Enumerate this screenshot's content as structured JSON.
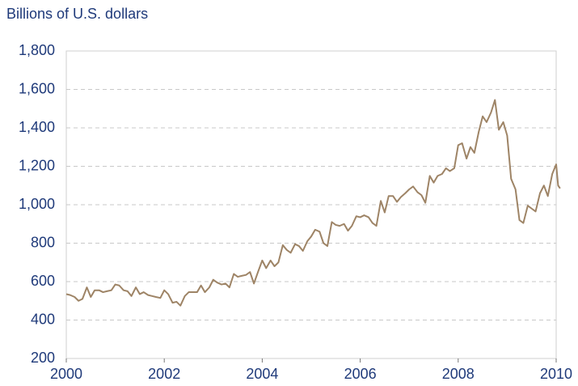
{
  "chart_data": {
    "type": "line",
    "title": "Billions of U.S. dollars",
    "x": [
      2000,
      2000.08,
      2000.17,
      2000.25,
      2000.33,
      2000.42,
      2000.5,
      2000.58,
      2000.67,
      2000.75,
      2000.83,
      2000.92,
      2001,
      2001.08,
      2001.17,
      2001.25,
      2001.33,
      2001.42,
      2001.5,
      2001.58,
      2001.67,
      2001.75,
      2001.83,
      2001.92,
      2002,
      2002.08,
      2002.17,
      2002.25,
      2002.33,
      2002.42,
      2002.5,
      2002.58,
      2002.67,
      2002.75,
      2002.83,
      2002.92,
      2003,
      2003.08,
      2003.17,
      2003.25,
      2003.33,
      2003.42,
      2003.5,
      2003.58,
      2003.67,
      2003.75,
      2003.83,
      2003.92,
      2004,
      2004.08,
      2004.17,
      2004.25,
      2004.33,
      2004.42,
      2004.5,
      2004.58,
      2004.67,
      2004.75,
      2004.83,
      2004.92,
      2005,
      2005.08,
      2005.17,
      2005.25,
      2005.33,
      2005.42,
      2005.5,
      2005.58,
      2005.67,
      2005.75,
      2005.83,
      2005.92,
      2006,
      2006.08,
      2006.17,
      2006.25,
      2006.33,
      2006.42,
      2006.5,
      2006.58,
      2006.67,
      2006.75,
      2006.83,
      2006.92,
      2007,
      2007.08,
      2007.17,
      2007.25,
      2007.33,
      2007.42,
      2007.5,
      2007.58,
      2007.67,
      2007.75,
      2007.83,
      2007.92,
      2008,
      2008.08,
      2008.17,
      2008.25,
      2008.33,
      2008.42,
      2008.5,
      2008.58,
      2008.67,
      2008.75,
      2008.83,
      2008.92,
      2009,
      2009.08,
      2009.17,
      2009.25,
      2009.33,
      2009.42,
      2009.5,
      2009.58,
      2009.67,
      2009.75,
      2009.83,
      2009.92,
      2010,
      2010.04,
      2010.08
    ],
    "series": [
      {
        "color": "#9e8466",
        "values": [
          535,
          530,
          520,
          500,
          510,
          570,
          520,
          555,
          555,
          545,
          550,
          555,
          585,
          580,
          555,
          550,
          525,
          570,
          535,
          545,
          530,
          525,
          520,
          515,
          555,
          535,
          490,
          495,
          475,
          525,
          545,
          545,
          545,
          580,
          545,
          570,
          610,
          595,
          585,
          590,
          570,
          640,
          625,
          630,
          635,
          650,
          590,
          655,
          710,
          670,
          710,
          680,
          700,
          790,
          765,
          750,
          795,
          785,
          760,
          810,
          835,
          870,
          860,
          800,
          785,
          910,
          895,
          890,
          900,
          865,
          890,
          940,
          935,
          945,
          935,
          905,
          890,
          1020,
          960,
          1045,
          1045,
          1015,
          1040,
          1060,
          1080,
          1095,
          1065,
          1050,
          1010,
          1150,
          1115,
          1150,
          1160,
          1190,
          1175,
          1190,
          1310,
          1320,
          1240,
          1300,
          1270,
          1380,
          1460,
          1430,
          1480,
          1545,
          1390,
          1430,
          1360,
          1135,
          1080,
          920,
          905,
          995,
          980,
          965,
          1060,
          1100,
          1045,
          1160,
          1210,
          1100,
          1085
        ]
      }
    ],
    "xlim": [
      2000,
      2010
    ],
    "xticks": [
      2000,
      2002,
      2004,
      2006,
      2008,
      2010
    ],
    "ylim": [
      200,
      1800
    ],
    "yticks": [
      200,
      400,
      600,
      800,
      {
        "value": 1000,
        "label": "1,000"
      },
      {
        "value": 1200,
        "label": "1,200"
      },
      {
        "value": 1400,
        "label": "1,400"
      },
      {
        "value": 1600,
        "label": "1,600"
      },
      {
        "value": 1800,
        "label": "1,800"
      }
    ],
    "grid": true
  }
}
